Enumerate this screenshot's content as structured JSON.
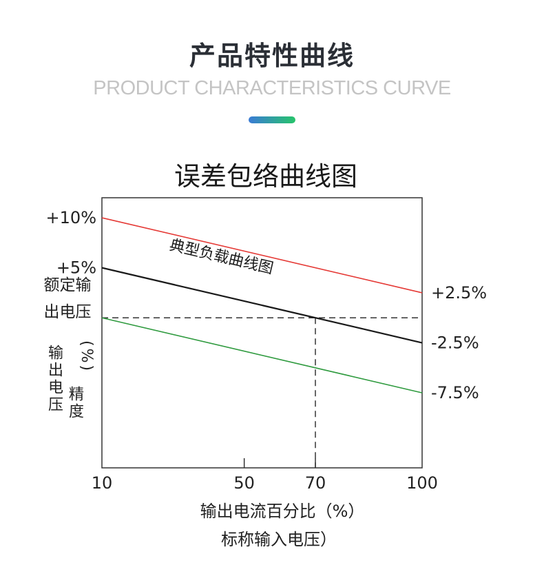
{
  "header": {
    "title": "产品特性曲线",
    "subtitle": "PRODUCT CHARACTERISTICS CURVE",
    "accent_gradient": [
      "#3a7bd5",
      "#27c46b"
    ]
  },
  "chart_data": {
    "type": "line",
    "title": "误差包络曲线图",
    "xlabel_line1": "输出电流百分比（%）",
    "xlabel_line2": "标称输入电压）",
    "ylabel_top_line1": "额定输",
    "ylabel_top_line2": "出电压",
    "ylabel_vertical_a": "输出电压",
    "ylabel_vertical_b": "精度",
    "ylabel_unit": "(%)",
    "x_ticks": [
      "10",
      "50",
      "70",
      "100"
    ],
    "x_tick_values": [
      10,
      50,
      70,
      100
    ],
    "xlim": [
      10,
      100
    ],
    "ylim": [
      -15,
      12
    ],
    "y_left_tick_labels": [
      {
        "label": "+10%",
        "value": 10
      },
      {
        "label": "+5%",
        "value": 5
      }
    ],
    "y_right_tick_labels": [
      {
        "label": "+2.5%",
        "value": 2.5
      },
      {
        "label": "-2.5%",
        "value": -2.5
      },
      {
        "label": "-7.5%",
        "value": -7.5
      }
    ],
    "series": [
      {
        "x": [
          10,
          100
        ],
        "y": [
          10,
          2.5
        ],
        "color": "#e53935"
      },
      {
        "x": [
          10,
          100
        ],
        "y": [
          5,
          -2.5
        ],
        "color": "#1a1a1a",
        "annotation": "典型负载曲线图"
      },
      {
        "x": [
          10,
          100
        ],
        "y": [
          0,
          -7.5
        ],
        "color": "#2e9a3e"
      }
    ],
    "reference_lines": [
      {
        "orientation": "horizontal",
        "y": 0,
        "style": "dashed"
      },
      {
        "orientation": "vertical",
        "x": 70,
        "style": "dashed"
      }
    ],
    "grid": false,
    "legend": "none"
  }
}
